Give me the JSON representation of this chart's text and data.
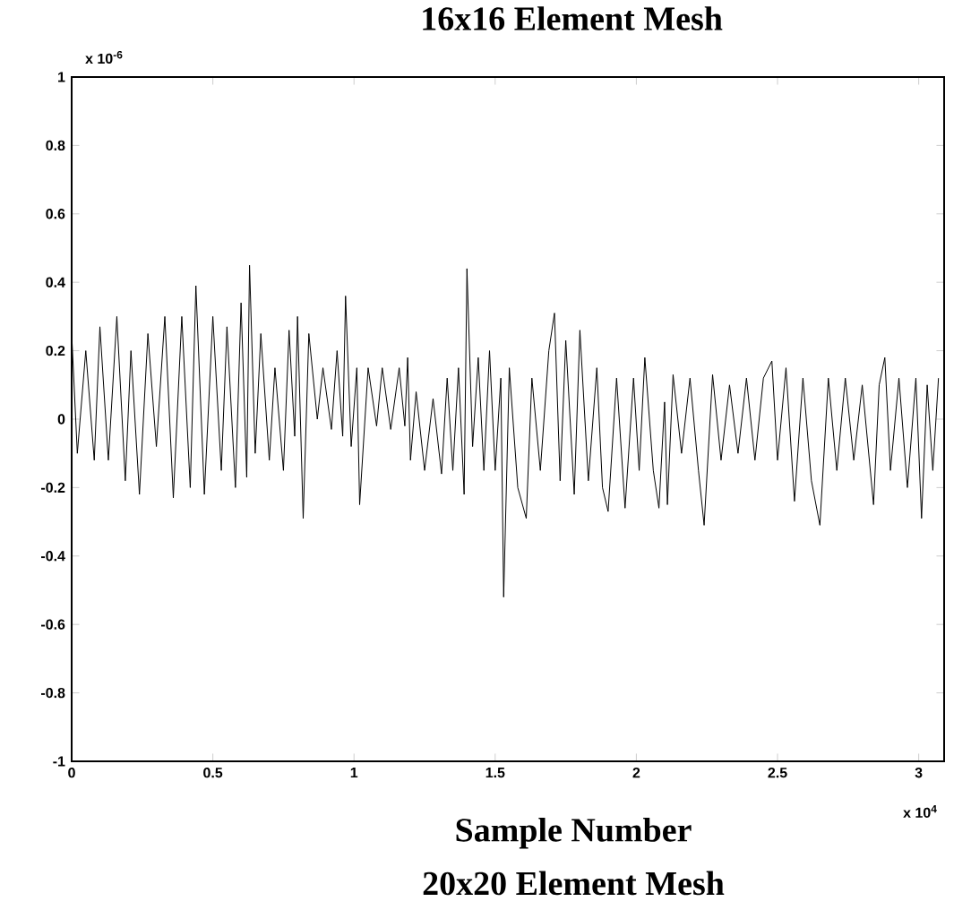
{
  "chart_data": {
    "type": "line",
    "title": "16x16 Element Mesh",
    "xlabel": "Sample Number",
    "annotations": [
      "x 10$^{-6}$",
      "x 10$^{4}$",
      "20x20 Element Mesh"
    ],
    "xlim": [
      0,
      3.09
    ],
    "ylim": [
      -1,
      1
    ],
    "xticks": [
      0,
      0.5,
      1,
      1.5,
      2,
      2.5,
      3
    ],
    "yticks": [
      -1,
      -0.8,
      -0.6,
      -0.4,
      -0.2,
      0,
      0.2,
      0.4,
      0.6,
      0.8,
      1
    ],
    "x": [
      0,
      0.02,
      0.05,
      0.08,
      0.1,
      0.13,
      0.16,
      0.19,
      0.21,
      0.24,
      0.27,
      0.3,
      0.33,
      0.36,
      0.39,
      0.42,
      0.44,
      0.47,
      0.5,
      0.53,
      0.55,
      0.58,
      0.6,
      0.62,
      0.63,
      0.65,
      0.67,
      0.7,
      0.72,
      0.75,
      0.77,
      0.79,
      0.8,
      0.82,
      0.84,
      0.87,
      0.89,
      0.92,
      0.94,
      0.96,
      0.97,
      0.99,
      1.01,
      1.02,
      1.05,
      1.08,
      1.1,
      1.13,
      1.16,
      1.18,
      1.19,
      1.2,
      1.22,
      1.25,
      1.28,
      1.31,
      1.33,
      1.35,
      1.37,
      1.39,
      1.4,
      1.42,
      1.44,
      1.46,
      1.48,
      1.5,
      1.52,
      1.53,
      1.55,
      1.58,
      1.61,
      1.63,
      1.66,
      1.69,
      1.71,
      1.73,
      1.75,
      1.78,
      1.8,
      1.83,
      1.86,
      1.88,
      1.9,
      1.93,
      1.96,
      1.99,
      2.01,
      2.03,
      2.06,
      2.08,
      2.1,
      2.11,
      2.13,
      2.16,
      2.19,
      2.22,
      2.24,
      2.27,
      2.3,
      2.33,
      2.36,
      2.39,
      2.42,
      2.45,
      2.48,
      2.5,
      2.53,
      2.56,
      2.59,
      2.62,
      2.65,
      2.68,
      2.71,
      2.74,
      2.77,
      2.8,
      2.84,
      2.86,
      2.88,
      2.9,
      2.93,
      2.96,
      2.99,
      3.01,
      3.03,
      3.05,
      3.07
    ],
    "series": [
      {
        "color": "#000000",
        "values": [
          0.25,
          -0.1,
          0.2,
          -0.12,
          0.27,
          -0.12,
          0.3,
          -0.18,
          0.2,
          -0.22,
          0.25,
          -0.08,
          0.3,
          -0.23,
          0.3,
          -0.2,
          0.39,
          -0.22,
          0.3,
          -0.15,
          0.27,
          -0.2,
          0.34,
          -0.17,
          0.45,
          -0.1,
          0.25,
          -0.12,
          0.15,
          -0.15,
          0.26,
          -0.05,
          0.3,
          -0.29,
          0.25,
          0,
          0.15,
          -0.03,
          0.2,
          -0.05,
          0.36,
          -0.08,
          0.15,
          -0.25,
          0.15,
          -0.02,
          0.15,
          -0.03,
          0.15,
          -0.02,
          0.18,
          -0.12,
          0.08,
          -0.15,
          0.06,
          -0.16,
          0.12,
          -0.15,
          0.15,
          -0.22,
          0.44,
          -0.08,
          0.18,
          -0.15,
          0.2,
          -0.15,
          0.12,
          -0.52,
          0.15,
          -0.2,
          -0.29,
          0.12,
          -0.15,
          0.2,
          0.31,
          -0.18,
          0.23,
          -0.22,
          0.26,
          -0.18,
          0.15,
          -0.2,
          -0.27,
          0.12,
          -0.26,
          0.12,
          -0.15,
          0.18,
          -0.15,
          -0.26,
          0.05,
          -0.25,
          0.13,
          -0.1,
          0.12,
          -0.15,
          -0.31,
          0.13,
          -0.12,
          0.1,
          -0.1,
          0.12,
          -0.12,
          0.12,
          0.17,
          -0.12,
          0.15,
          -0.24,
          0.12,
          -0.18,
          -0.31,
          0.12,
          -0.15,
          0.12,
          -0.12,
          0.1,
          -0.25,
          0.1,
          0.18,
          -0.15,
          0.12,
          -0.2,
          0.12,
          -0.29,
          0.1,
          -0.15,
          0.12
        ]
      }
    ]
  }
}
